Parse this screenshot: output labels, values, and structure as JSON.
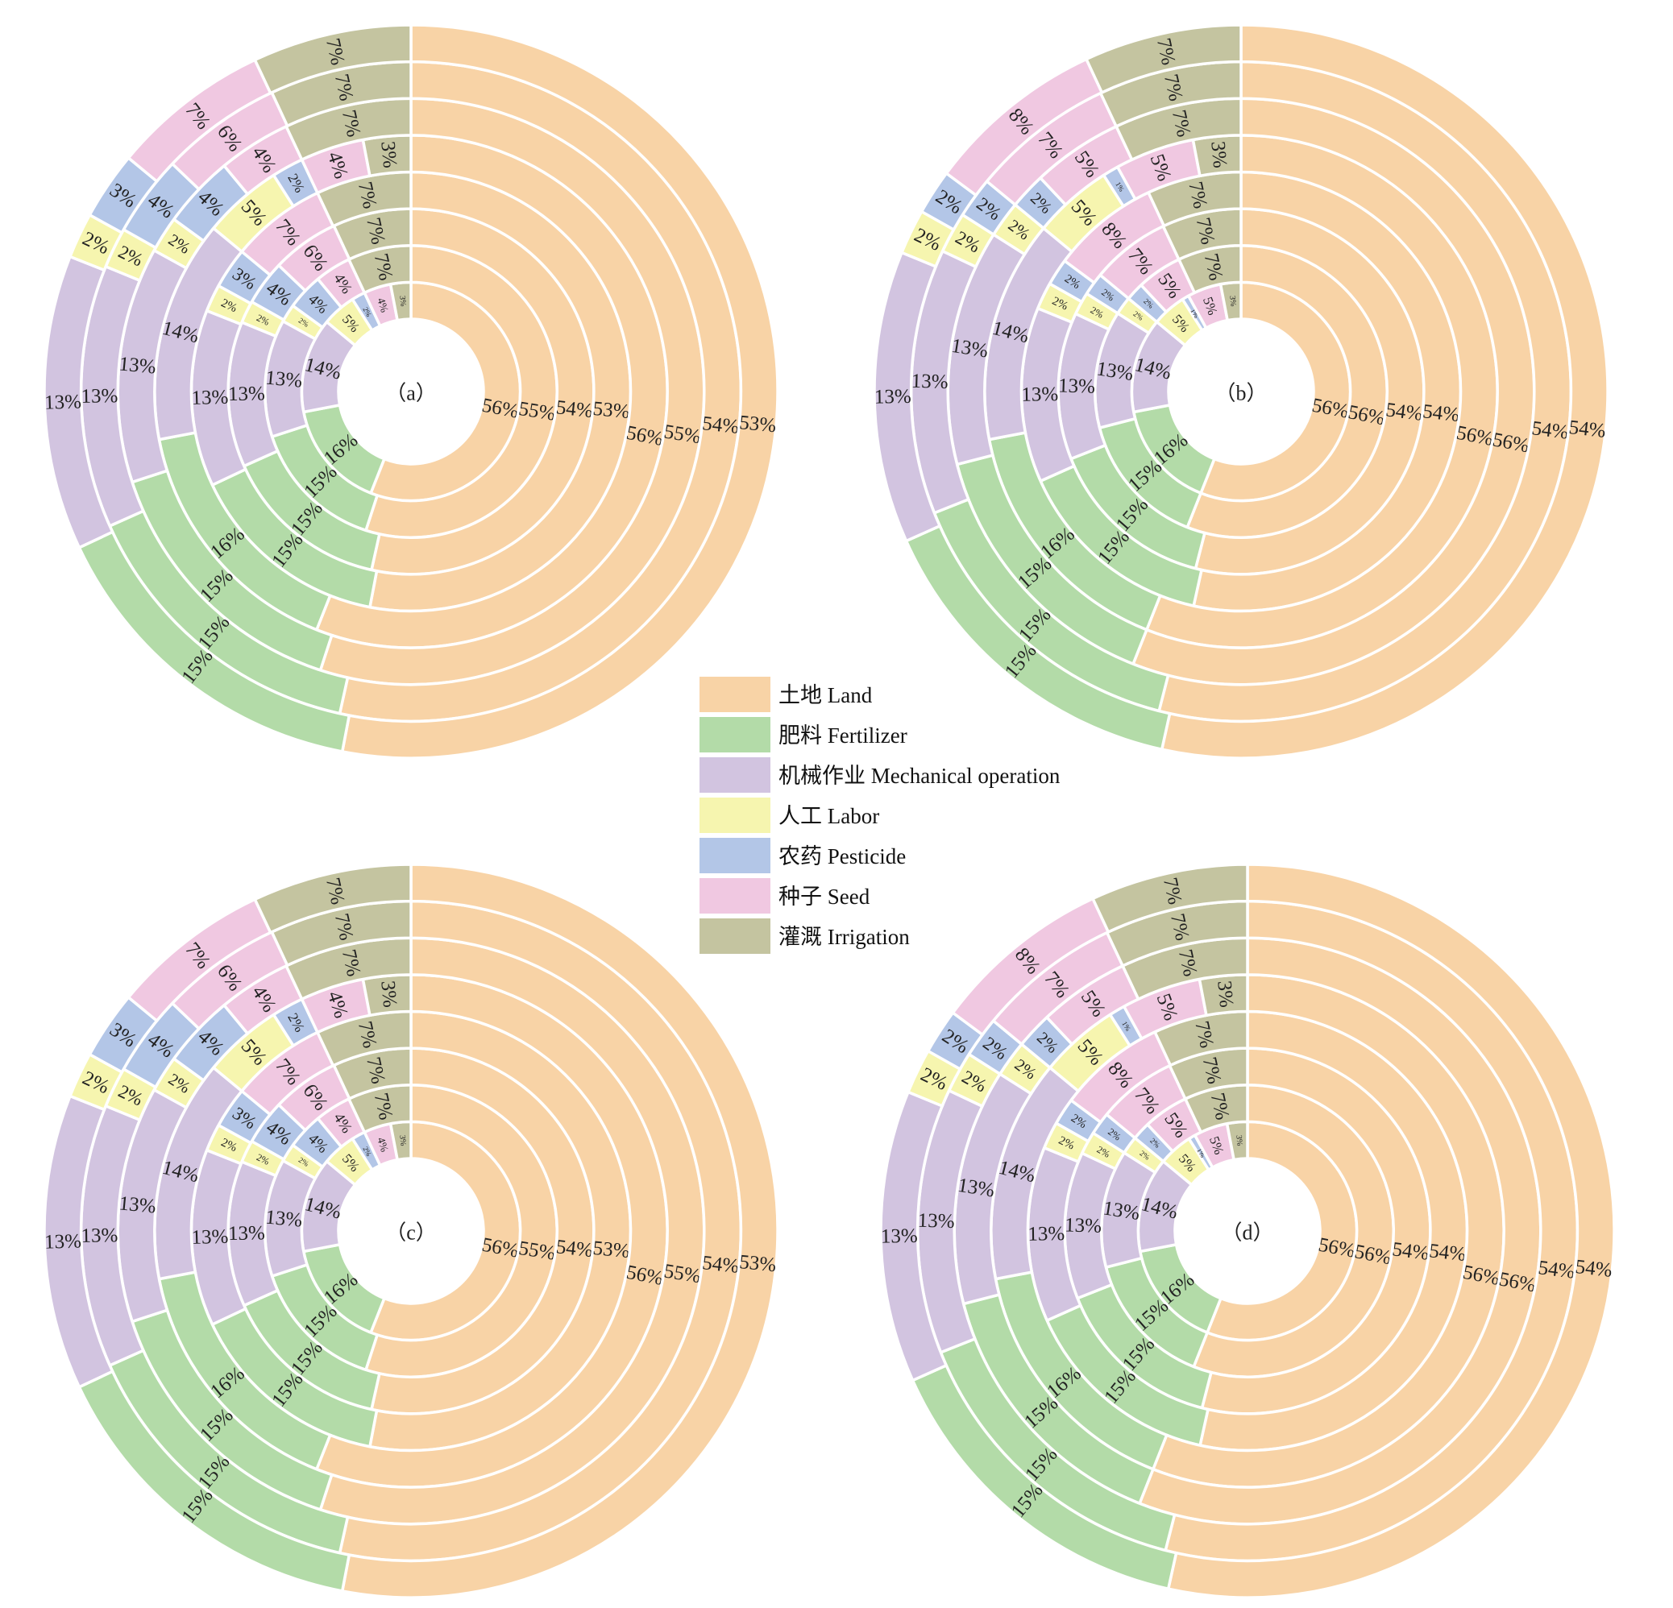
{
  "legend": [
    {
      "label": "土地 Land",
      "color": "#F8D3A6"
    },
    {
      "label": "肥料 Fertilizer",
      "color": "#B3DBA8"
    },
    {
      "label": "机械作业 Mechanical operation",
      "color": "#D2C4E0"
    },
    {
      "label": "人工 Labor",
      "color": "#F6F5AF"
    },
    {
      "label": "农药 Pesticide",
      "color": "#B3C6E7"
    },
    {
      "label": "种子 Seed",
      "color": "#F0C8E1"
    },
    {
      "label": "灌溉 Irrigation",
      "color": "#C4C4A0"
    }
  ],
  "chart_data": [
    {
      "type": "pie",
      "subtype": "nested-donut",
      "title": "（a）",
      "categories": [
        "土地 Land",
        "肥料 Fertilizer",
        "机械作业 Mechanical operation",
        "人工 Labor",
        "农药 Pesticide",
        "种子 Seed",
        "灌溉 Irrigation"
      ],
      "rings": [
        {
          "values": [
            56,
            16,
            14,
            5,
            2,
            4,
            3
          ],
          "labels": [
            "56%",
            "16%",
            "14%",
            "5%",
            "2%",
            "4%",
            "3%"
          ]
        },
        {
          "values": [
            55,
            15,
            13,
            2,
            4,
            4,
            7
          ],
          "labels": [
            "55%",
            "15%",
            "13%",
            "2%",
            "4%",
            "4%",
            "7%"
          ]
        },
        {
          "values": [
            54,
            15,
            13,
            2,
            4,
            6,
            7
          ],
          "labels": [
            "54%",
            "15%",
            "13%",
            "2%",
            "4%",
            "6%",
            "7%"
          ]
        },
        {
          "values": [
            53,
            15,
            13,
            2,
            3,
            7,
            7
          ],
          "labels": [
            "53%",
            "15%",
            "13%",
            "2%",
            "3%",
            "7%",
            "7%"
          ]
        },
        {
          "values": [
            56,
            16,
            14,
            5,
            2,
            4,
            3
          ],
          "labels": [
            "56%",
            "16%",
            "14%",
            "5%",
            "2%",
            "4%",
            "3%"
          ]
        },
        {
          "values": [
            55,
            15,
            13,
            2,
            4,
            4,
            7
          ],
          "labels": [
            "55%",
            "15%",
            "13%",
            "2%",
            "4%",
            "4%",
            "7%"
          ]
        },
        {
          "values": [
            54,
            15,
            13,
            2,
            4,
            6,
            7
          ],
          "labels": [
            "54%",
            "15%",
            "13%",
            "2%",
            "4%",
            "6%",
            "7%"
          ]
        },
        {
          "values": [
            53,
            15,
            13,
            2,
            3,
            7,
            7
          ],
          "labels": [
            "53%",
            "15%",
            "13%",
            "2%",
            "3%",
            "7%",
            "7%"
          ]
        }
      ]
    },
    {
      "type": "pie",
      "subtype": "nested-donut",
      "title": "（b）",
      "categories": [
        "土地 Land",
        "肥料 Fertilizer",
        "机械作业 Mechanical operation",
        "人工 Labor",
        "农药 Pesticide",
        "种子 Seed",
        "灌溉 Irrigation"
      ],
      "rings": [
        {
          "values": [
            56,
            16,
            14,
            5,
            1,
            5,
            3
          ],
          "labels": [
            "56%",
            "16%",
            "14%",
            "5%",
            "1%",
            "5%",
            "3%"
          ]
        },
        {
          "values": [
            56,
            15,
            13,
            2,
            2,
            5,
            7
          ],
          "labels": [
            "56%",
            "15%",
            "13%",
            "2%",
            "2%",
            "5%",
            "7%"
          ]
        },
        {
          "values": [
            54,
            15,
            13,
            2,
            2,
            7,
            7
          ],
          "labels": [
            "54%",
            "15%",
            "13%",
            "2%",
            "2%",
            "7%",
            "7%"
          ]
        },
        {
          "values": [
            54,
            15,
            13,
            2,
            2,
            8,
            7
          ],
          "labels": [
            "54%",
            "15%",
            "13%",
            "2%",
            "2%",
            "8%",
            "7%"
          ]
        },
        {
          "values": [
            56,
            16,
            14,
            5,
            1,
            5,
            3
          ],
          "labels": [
            "56%",
            "16%",
            "14%",
            "5%",
            "1%",
            "5%",
            "3%"
          ]
        },
        {
          "values": [
            56,
            15,
            13,
            2,
            2,
            5,
            7
          ],
          "labels": [
            "56%",
            "15%",
            "13%",
            "2%",
            "2%",
            "5%",
            "7%"
          ]
        },
        {
          "values": [
            54,
            15,
            13,
            2,
            2,
            7,
            7
          ],
          "labels": [
            "54%",
            "15%",
            "13%",
            "2%",
            "2%",
            "7%",
            "7%"
          ]
        },
        {
          "values": [
            54,
            15,
            13,
            2,
            2,
            8,
            7
          ],
          "labels": [
            "54%",
            "15%",
            "13%",
            "2%",
            "2%",
            "8%",
            "7%"
          ]
        }
      ]
    },
    {
      "type": "pie",
      "subtype": "nested-donut",
      "title": "（c）",
      "categories": [
        "土地 Land",
        "肥料 Fertilizer",
        "机械作业 Mechanical operation",
        "人工 Labor",
        "农药 Pesticide",
        "种子 Seed",
        "灌溉 Irrigation"
      ],
      "rings": [
        {
          "values": [
            56,
            16,
            14,
            5,
            2,
            4,
            3
          ],
          "labels": [
            "56%",
            "16%",
            "14%",
            "5%",
            "2%",
            "4%",
            "3%"
          ]
        },
        {
          "values": [
            55,
            15,
            13,
            2,
            4,
            4,
            7
          ],
          "labels": [
            "55%",
            "15%",
            "13%",
            "2%",
            "4%",
            "4%",
            "7%"
          ]
        },
        {
          "values": [
            54,
            15,
            13,
            2,
            4,
            6,
            7
          ],
          "labels": [
            "54%",
            "15%",
            "13%",
            "2%",
            "4%",
            "6%",
            "7%"
          ]
        },
        {
          "values": [
            53,
            15,
            13,
            2,
            3,
            7,
            7
          ],
          "labels": [
            "53%",
            "15%",
            "13%",
            "2%",
            "3%",
            "7%",
            "7%"
          ]
        },
        {
          "values": [
            56,
            16,
            14,
            5,
            2,
            4,
            3
          ],
          "labels": [
            "56%",
            "16%",
            "14%",
            "5%",
            "2%",
            "4%",
            "3%"
          ]
        },
        {
          "values": [
            55,
            15,
            13,
            2,
            4,
            4,
            7
          ],
          "labels": [
            "55%",
            "15%",
            "13%",
            "2%",
            "4%",
            "4%",
            "7%"
          ]
        },
        {
          "values": [
            54,
            15,
            13,
            2,
            4,
            6,
            7
          ],
          "labels": [
            "54%",
            "15%",
            "13%",
            "2%",
            "4%",
            "6%",
            "7%"
          ]
        },
        {
          "values": [
            53,
            15,
            13,
            2,
            3,
            7,
            7
          ],
          "labels": [
            "53%",
            "15%",
            "13%",
            "2%",
            "3%",
            "7%",
            "7%"
          ]
        }
      ]
    },
    {
      "type": "pie",
      "subtype": "nested-donut",
      "title": "（d）",
      "categories": [
        "土地 Land",
        "肥料 Fertilizer",
        "机械作业 Mechanical operation",
        "人工 Labor",
        "农药 Pesticide",
        "种子 Seed",
        "灌溉 Irrigation"
      ],
      "rings": [
        {
          "values": [
            56,
            16,
            14,
            5,
            1,
            5,
            3
          ],
          "labels": [
            "56%",
            "16%",
            "14%",
            "5%",
            "1%",
            "5%",
            "3%"
          ]
        },
        {
          "values": [
            56,
            15,
            13,
            2,
            2,
            5,
            7
          ],
          "labels": [
            "56%",
            "15%",
            "13%",
            "2%",
            "2%",
            "5%",
            "7%"
          ]
        },
        {
          "values": [
            54,
            15,
            13,
            2,
            2,
            7,
            7
          ],
          "labels": [
            "54%",
            "15%",
            "13%",
            "2%",
            "2%",
            "7%",
            "7%"
          ]
        },
        {
          "values": [
            54,
            15,
            13,
            2,
            2,
            8,
            7
          ],
          "labels": [
            "54%",
            "15%",
            "13%",
            "2%",
            "2%",
            "8%",
            "7%"
          ]
        },
        {
          "values": [
            56,
            16,
            14,
            5,
            1,
            5,
            3
          ],
          "labels": [
            "56%",
            "16%",
            "14%",
            "5%",
            "1%",
            "5%",
            "3%"
          ]
        },
        {
          "values": [
            56,
            15,
            13,
            2,
            2,
            5,
            7
          ],
          "labels": [
            "56%",
            "15%",
            "13%",
            "2%",
            "2%",
            "5%",
            "7%"
          ]
        },
        {
          "values": [
            54,
            15,
            13,
            2,
            2,
            7,
            7
          ],
          "labels": [
            "54%",
            "15%",
            "13%",
            "2%",
            "2%",
            "7%",
            "7%"
          ]
        },
        {
          "values": [
            54,
            15,
            13,
            2,
            2,
            8,
            7
          ],
          "labels": [
            "54%",
            "15%",
            "13%",
            "2%",
            "2%",
            "8%",
            "7%"
          ]
        }
      ]
    }
  ]
}
